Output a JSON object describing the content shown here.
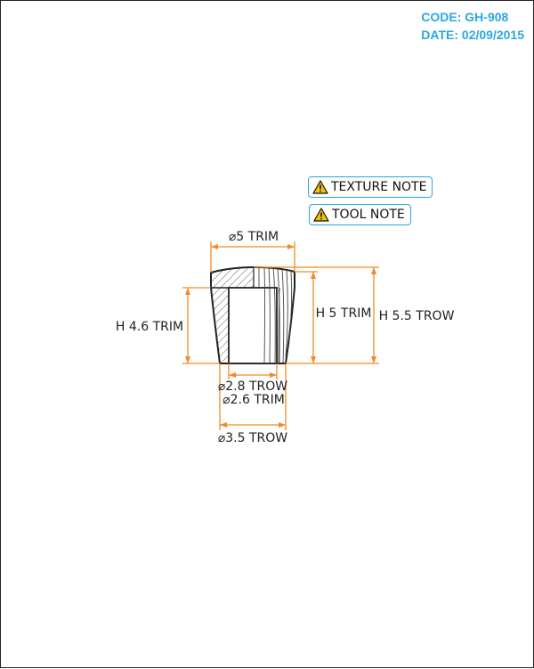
{
  "header": {
    "code": "CODE: GH-908",
    "date": "DATE: 02/09/2015"
  },
  "notes": [
    {
      "label": "TEXTURE NOTE",
      "icon": "warning-icon"
    },
    {
      "label": "TOOL NOTE",
      "icon": "warning-icon"
    }
  ],
  "dimensions": {
    "top_diameter": "⌀5 TRIM",
    "left_height": "H 4.6 TRIM",
    "inner_height": "H 5 TRIM",
    "outer_height": "H 5.5 TROW",
    "bore_trow": "⌀2.8 TROW",
    "bore_trim": "⌀2.6 TRIM",
    "base_diameter": "⌀3.5 TROW"
  },
  "colors": {
    "accent": "#2aa7e0",
    "dimension_line": "#f08a24",
    "outline": "#222222",
    "warning_fill": "#f5c400"
  }
}
